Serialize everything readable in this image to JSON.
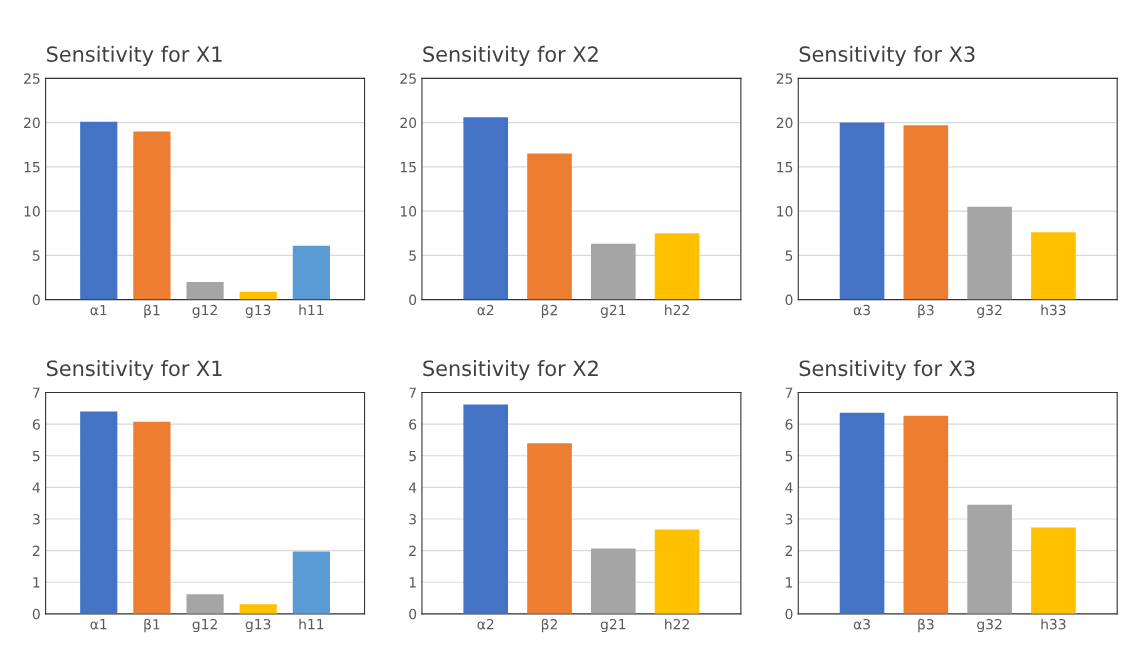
{
  "chart_data": [
    {
      "type": "bar",
      "title": "Sensitivity for X1",
      "categories": [
        "α1",
        "β1",
        "g12",
        "g13",
        "h11"
      ],
      "values": [
        20.1,
        19.0,
        2.0,
        0.9,
        6.1
      ],
      "colors": [
        "#4472c4",
        "#ed7d31",
        "#a5a5a5",
        "#ffc000",
        "#5b9bd5"
      ],
      "ylim": [
        0,
        25
      ],
      "yticks": [
        0,
        5,
        10,
        15,
        20,
        25
      ],
      "grid": "y"
    },
    {
      "type": "bar",
      "title": "Sensitivity for X2",
      "categories": [
        "α2",
        "β2",
        "g21",
        "h22"
      ],
      "values": [
        20.6,
        16.5,
        6.3,
        7.5
      ],
      "colors": [
        "#4472c4",
        "#ed7d31",
        "#a5a5a5",
        "#ffc000"
      ],
      "ylim": [
        0,
        25
      ],
      "yticks": [
        0,
        5,
        10,
        15,
        20,
        25
      ],
      "grid": "y"
    },
    {
      "type": "bar",
      "title": "Sensitivity for X3",
      "categories": [
        "α3",
        "β3",
        "g32",
        "h33"
      ],
      "values": [
        20.0,
        19.7,
        10.5,
        7.6
      ],
      "colors": [
        "#4472c4",
        "#ed7d31",
        "#a5a5a5",
        "#ffc000"
      ],
      "ylim": [
        0,
        25
      ],
      "yticks": [
        0,
        5,
        10,
        15,
        20,
        25
      ],
      "grid": "y"
    },
    {
      "type": "bar",
      "title": "Sensitivity for X1",
      "categories": [
        "α1",
        "β1",
        "g12",
        "g13",
        "h11"
      ],
      "values": [
        6.4,
        6.08,
        0.62,
        0.3,
        1.97
      ],
      "colors": [
        "#4472c4",
        "#ed7d31",
        "#a5a5a5",
        "#ffc000",
        "#5b9bd5"
      ],
      "ylim": [
        0,
        7
      ],
      "yticks": [
        0,
        1,
        2,
        3,
        4,
        5,
        6,
        7
      ],
      "grid": "y"
    },
    {
      "type": "bar",
      "title": "Sensitivity for X2",
      "categories": [
        "α2",
        "β2",
        "g21",
        "h22"
      ],
      "values": [
        6.62,
        5.4,
        2.07,
        2.67
      ],
      "colors": [
        "#4472c4",
        "#ed7d31",
        "#a5a5a5",
        "#ffc000"
      ],
      "ylim": [
        0,
        7
      ],
      "yticks": [
        0,
        1,
        2,
        3,
        4,
        5,
        6,
        7
      ],
      "grid": "y"
    },
    {
      "type": "bar",
      "title": "Sensitivity for X3",
      "categories": [
        "α3",
        "β3",
        "g32",
        "h33"
      ],
      "values": [
        6.36,
        6.27,
        3.45,
        2.73
      ],
      "colors": [
        "#4472c4",
        "#ed7d31",
        "#a5a5a5",
        "#ffc000"
      ],
      "ylim": [
        0,
        7
      ],
      "yticks": [
        0,
        1,
        2,
        3,
        4,
        5,
        6,
        7
      ],
      "grid": "y"
    }
  ]
}
